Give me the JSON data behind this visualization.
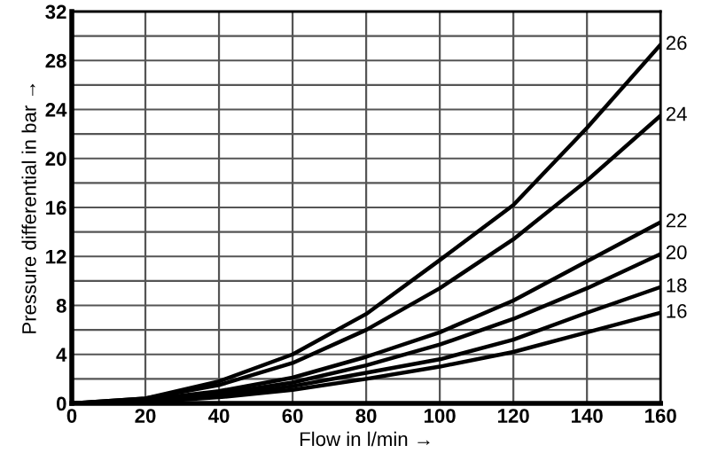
{
  "chart_data": {
    "type": "line",
    "xlabel": "Flow in l/min →",
    "ylabel": "Pressure differential in bar →",
    "x": [
      0,
      20,
      40,
      60,
      80,
      100,
      120,
      140,
      160
    ],
    "series": [
      {
        "name": "26",
        "color": "#000000",
        "values": [
          0,
          0.4,
          1.8,
          4.0,
          7.3,
          11.7,
          16.2,
          22.5,
          29.3
        ]
      },
      {
        "name": "24",
        "color": "#000000",
        "values": [
          0,
          0.4,
          1.5,
          3.3,
          6.0,
          9.4,
          13.4,
          18.2,
          23.5
        ]
      },
      {
        "name": "22",
        "color": "#000000",
        "values": [
          0,
          0.3,
          1.0,
          2.1,
          3.8,
          5.8,
          8.4,
          11.6,
          14.8
        ]
      },
      {
        "name": "20",
        "color": "#000000",
        "values": [
          0,
          0.2,
          0.8,
          1.7,
          3.1,
          4.8,
          6.9,
          9.4,
          12.2
        ]
      },
      {
        "name": "18",
        "color": "#000000",
        "values": [
          0,
          0.2,
          0.6,
          1.4,
          2.5,
          3.6,
          5.2,
          7.4,
          9.5
        ]
      },
      {
        "name": "16",
        "color": "#000000",
        "values": [
          0,
          0.1,
          0.5,
          1.1,
          2.0,
          3.0,
          4.2,
          5.8,
          7.4
        ]
      }
    ],
    "xlim": [
      0,
      160
    ],
    "ylim": [
      0,
      32
    ],
    "xticks": [
      0,
      20,
      40,
      60,
      80,
      100,
      120,
      140,
      160
    ],
    "yticks": [
      0,
      {
        "value": 2,
        "label": null
      },
      4,
      {
        "value": 6,
        "label": null
      },
      8,
      {
        "value": 10,
        "label": null
      },
      12,
      {
        "value": 14,
        "label": null
      },
      16,
      {
        "value": 18,
        "label": null
      },
      20,
      {
        "value": 22,
        "label": null
      },
      24,
      {
        "value": 26,
        "label": null
      },
      28,
      {
        "value": 30,
        "label": null
      },
      32
    ],
    "grid": true,
    "marker": "none",
    "line_style": "solid"
  }
}
